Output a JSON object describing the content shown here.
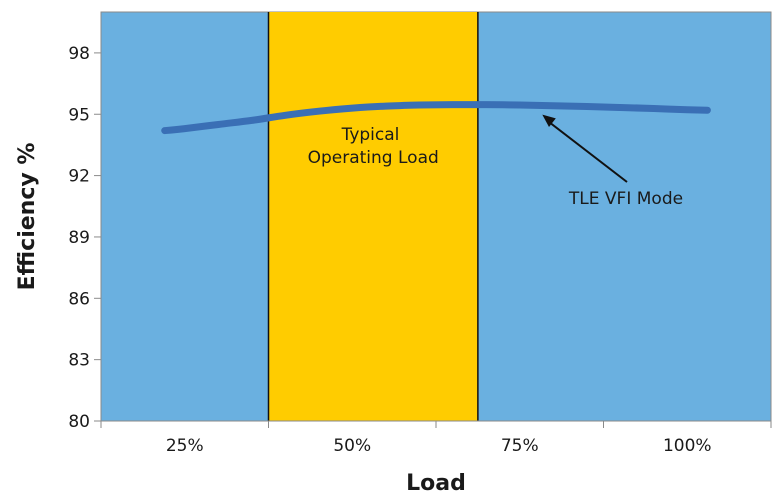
{
  "chart_data": {
    "type": "line",
    "xlabel": "Load",
    "ylabel": "Efficiency %",
    "categories": [
      "25%",
      "50%",
      "75%",
      "100%"
    ],
    "y_ticks": [
      "80",
      "83",
      "86",
      "89",
      "92",
      "95",
      "98"
    ],
    "ylim": [
      80,
      100
    ],
    "grid": false,
    "series": [
      {
        "name": "TLE VFI Mode",
        "x": [
          22,
          25,
          30,
          35,
          40,
          45,
          50,
          55,
          60,
          65,
          70,
          75,
          80,
          85,
          90,
          95,
          100,
          103
        ],
        "values": [
          94.2,
          94.3,
          94.5,
          94.7,
          94.95,
          95.15,
          95.3,
          95.4,
          95.45,
          95.47,
          95.47,
          95.45,
          95.42,
          95.38,
          95.33,
          95.28,
          95.22,
          95.2
        ]
      }
    ],
    "highlight_band": {
      "label_lines": [
        "Typical",
        "Operating Load"
      ],
      "x_range": [
        37.5,
        68.75
      ]
    },
    "annotation": {
      "text": "TLE VFI Mode",
      "target": [
        80,
        95.47
      ]
    },
    "colors": {
      "background": "#6ab0e0",
      "band": "#ffcc00",
      "line": "#3a6fb5",
      "axis": "#8a8a8a"
    }
  }
}
